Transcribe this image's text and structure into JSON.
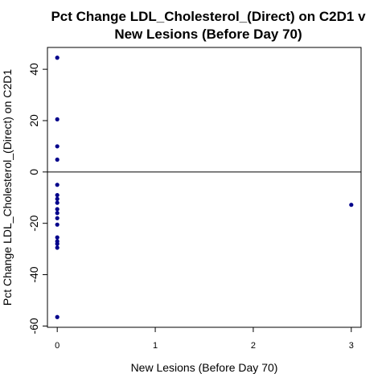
{
  "chart_data": {
    "type": "scatter",
    "title_lines": [
      "Pct Change LDL_Cholesterol_(Direct) on C2D1 v",
      "New Lesions (Before Day 70)"
    ],
    "xlabel": "New Lesions (Before Day 70)",
    "ylabel": "Pct Change LDL_Cholesterol_(Direct) on C2D1",
    "xlim": [
      -0.1,
      3.1
    ],
    "ylim": [
      -60.5,
      48.5
    ],
    "x_ticks": [
      0,
      1,
      2,
      3
    ],
    "x_tick_labels": [
      "0",
      "1",
      "2",
      "3"
    ],
    "y_ticks": [
      -60,
      -40,
      -20,
      0,
      20,
      40
    ],
    "y_tick_labels": [
      "-60",
      "-40",
      "-20",
      "0",
      "20",
      "40"
    ],
    "reference_line_y": 0,
    "grid": false,
    "point_color": "#00008B",
    "points": [
      {
        "x": 0,
        "y": 44.5
      },
      {
        "x": 0,
        "y": 20.5
      },
      {
        "x": 0,
        "y": 10
      },
      {
        "x": 0,
        "y": 4.8
      },
      {
        "x": 0,
        "y": -5
      },
      {
        "x": 0,
        "y": -9
      },
      {
        "x": 0,
        "y": -10.5
      },
      {
        "x": 0,
        "y": -12
      },
      {
        "x": 0,
        "y": -14.5
      },
      {
        "x": 0,
        "y": -16
      },
      {
        "x": 0,
        "y": -18
      },
      {
        "x": 0,
        "y": -20.5
      },
      {
        "x": 0,
        "y": -25.5
      },
      {
        "x": 0,
        "y": -27
      },
      {
        "x": 0,
        "y": -28
      },
      {
        "x": 0,
        "y": -29.5
      },
      {
        "x": 0,
        "y": -56.5
      },
      {
        "x": 3,
        "y": -12.8
      }
    ]
  }
}
